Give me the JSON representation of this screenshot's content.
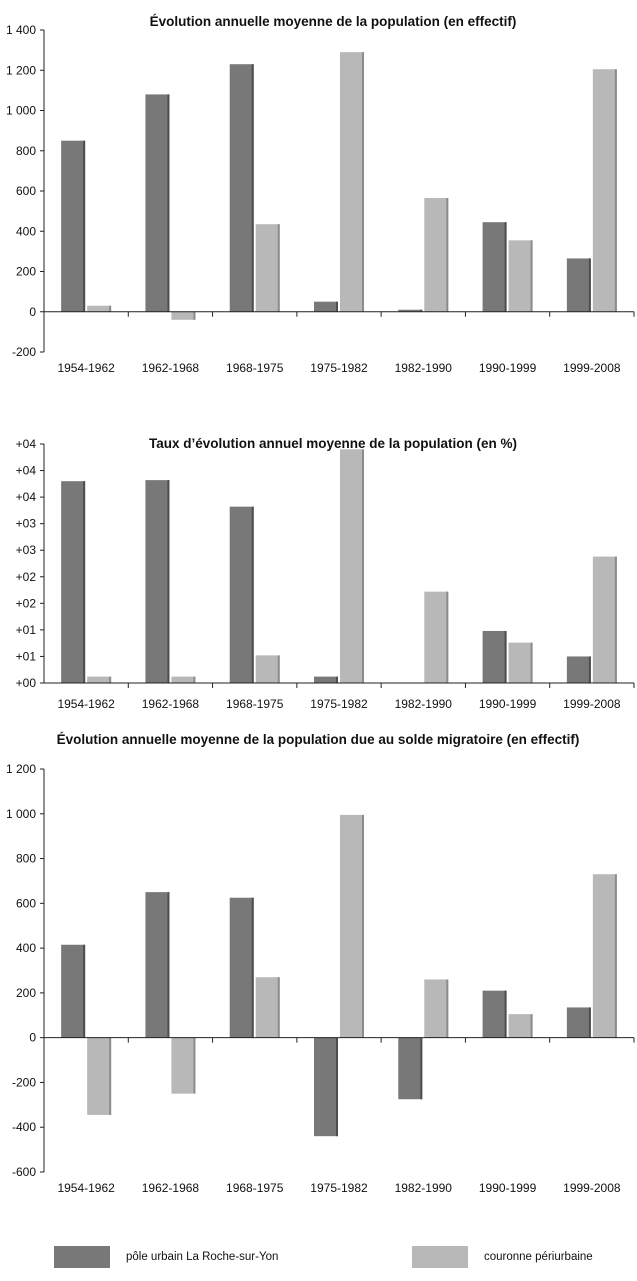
{
  "colors": {
    "urban": "#787878",
    "urban_dark": "#4e4e4e",
    "periurban": "#b8b8b8",
    "periurban_dark": "#8c8c8c",
    "axis": "#222222"
  },
  "legend": {
    "urban_label": "pôle urbain La Roche-sur-Yon",
    "periurban_label": "couronne périurbaine"
  },
  "chart_data": [
    {
      "type": "bar",
      "title": "Évolution annuelle moyenne de la population (en effectif)",
      "categories": [
        "1954-1962",
        "1962-1968",
        "1968-1975",
        "1975-1982",
        "1982-1990",
        "1990-1999",
        "1999-2008"
      ],
      "series": [
        {
          "name": "pôle urbain La Roche-sur-Yon",
          "values": [
            850,
            1080,
            1230,
            50,
            10,
            445,
            265
          ]
        },
        {
          "name": "couronne périurbaine",
          "values": [
            30,
            -40,
            435,
            1290,
            565,
            355,
            1205
          ]
        }
      ],
      "ylim": [
        -200,
        1400
      ],
      "yticks": [
        -200,
        0,
        200,
        400,
        600,
        800,
        1000,
        1200,
        1400
      ],
      "ytick_labels": [
        "-200",
        "0",
        "200",
        "400",
        "600",
        "800",
        "1 000",
        "1 200",
        "1 400"
      ],
      "grid": false
    },
    {
      "type": "bar",
      "title": "Taux d’évolution annuel moyenne de la population (en %)",
      "categories": [
        "1954-1962",
        "1962-1968",
        "1968-1975",
        "1975-1982",
        "1982-1990",
        "1990-1999",
        "1999-2008"
      ],
      "series": [
        {
          "name": "pôle urbain La Roche-sur-Yon",
          "values": [
            3.8,
            3.82,
            3.32,
            0.12,
            0.0,
            0.98,
            0.5
          ]
        },
        {
          "name": "couronne périurbaine",
          "values": [
            0.12,
            0.12,
            0.52,
            4.4,
            1.72,
            0.76,
            2.38
          ]
        }
      ],
      "ylim": [
        0,
        4.5
      ],
      "yticks": [
        0,
        0.5,
        1,
        1.5,
        2,
        2.5,
        3,
        3.5,
        4,
        4.5
      ],
      "ytick_labels": [
        "+00",
        "+01",
        "+01",
        "+02",
        "+02",
        "+03",
        "+03",
        "+04",
        "+04",
        "+04"
      ],
      "grid": false
    },
    {
      "type": "bar",
      "title": "Évolution annuelle moyenne de la population due au solde migratoire (en effectif)",
      "categories": [
        "1954-1962",
        "1962-1968",
        "1968-1975",
        "1975-1982",
        "1982-1990",
        "1990-1999",
        "1999-2008"
      ],
      "series": [
        {
          "name": "pôle urbain La Roche-sur-Yon",
          "values": [
            415,
            650,
            625,
            -440,
            -275,
            210,
            135
          ]
        },
        {
          "name": "couronne périurbaine",
          "values": [
            -345,
            -250,
            270,
            995,
            260,
            105,
            730
          ]
        }
      ],
      "ylim": [
        -600,
        1200
      ],
      "yticks": [
        -600,
        -400,
        -200,
        0,
        200,
        400,
        600,
        800,
        1000,
        1200
      ],
      "ytick_labels": [
        "-600",
        "-400",
        "-200",
        "0",
        "200",
        "400",
        "600",
        "800",
        "1 000",
        "1 200"
      ],
      "grid": false
    }
  ]
}
